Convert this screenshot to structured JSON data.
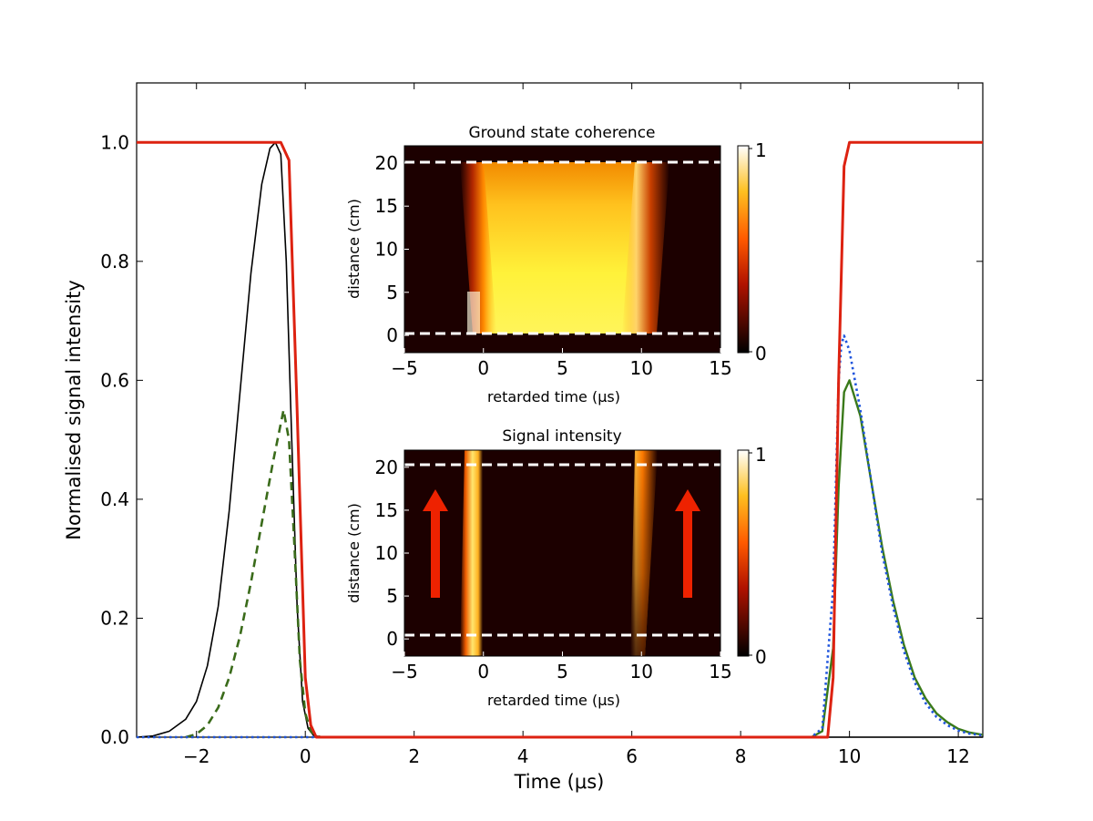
{
  "chart_data": [
    {
      "type": "line",
      "xlabel": "Time (μs)",
      "ylabel": "Normalised signal intensity",
      "xlim": [
        -3.1,
        12.45
      ],
      "ylim": [
        0,
        1.1
      ],
      "xticks": [
        -2,
        0,
        2,
        4,
        6,
        8,
        10,
        12
      ],
      "xtick_labels": [
        "−2",
        "0",
        "2",
        "4",
        "6",
        "8",
        "10",
        "12"
      ],
      "yticks": [
        0,
        0.2,
        0.4,
        0.6,
        0.8,
        1.0
      ],
      "ytick_labels": [
        "0.0",
        "0.2",
        "0.4",
        "0.6",
        "0.8",
        "1.0"
      ],
      "grid": false,
      "series": [
        {
          "color": "#dd2211",
          "style": "solid-thick",
          "x": [
            -3.1,
            -0.45,
            -0.3,
            -0.15,
            0.0,
            0.1,
            0.2,
            9.6,
            9.7,
            9.8,
            9.9,
            10.0,
            12.45
          ],
          "y": [
            1.0,
            1.0,
            0.97,
            0.55,
            0.1,
            0.02,
            0.0,
            0.0,
            0.1,
            0.6,
            0.96,
            1.0,
            1.0
          ]
        },
        {
          "color": "#000000",
          "style": "solid-thin",
          "x": [
            -3.1,
            -2.8,
            -2.5,
            -2.2,
            -2.0,
            -1.8,
            -1.6,
            -1.4,
            -1.2,
            -1.0,
            -0.8,
            -0.65,
            -0.55,
            -0.45,
            -0.35,
            -0.25,
            -0.15,
            -0.05,
            0.05,
            0.15,
            0.3,
            12.45
          ],
          "y": [
            0.0,
            0.002,
            0.01,
            0.03,
            0.06,
            0.12,
            0.22,
            0.38,
            0.58,
            0.78,
            0.93,
            0.99,
            1.0,
            0.98,
            0.8,
            0.5,
            0.22,
            0.06,
            0.015,
            0.003,
            0.0,
            0.0
          ]
        },
        {
          "color": "#3a6b1a",
          "style": "dashed",
          "x": [
            -2.2,
            -2.0,
            -1.8,
            -1.6,
            -1.4,
            -1.2,
            -1.0,
            -0.8,
            -0.6,
            -0.4,
            -0.3,
            -0.2,
            -0.1,
            0.0,
            0.1,
            0.2,
            0.3
          ],
          "y": [
            0.0,
            0.005,
            0.02,
            0.05,
            0.1,
            0.17,
            0.26,
            0.36,
            0.46,
            0.55,
            0.5,
            0.32,
            0.13,
            0.04,
            0.01,
            0.002,
            0.0
          ]
        },
        {
          "color": "#3a7a1a",
          "style": "solid-medium",
          "x": [
            9.3,
            9.5,
            9.7,
            9.8,
            9.9,
            10.0,
            10.2,
            10.4,
            10.6,
            10.8,
            11.0,
            11.2,
            11.4,
            11.6,
            11.8,
            12.0,
            12.2,
            12.45
          ],
          "y": [
            0.0,
            0.01,
            0.15,
            0.42,
            0.58,
            0.6,
            0.54,
            0.43,
            0.32,
            0.23,
            0.155,
            0.1,
            0.065,
            0.04,
            0.025,
            0.014,
            0.008,
            0.004
          ]
        },
        {
          "color": "#1f55dd",
          "style": "dotted",
          "x": [
            -3.1,
            9.3,
            9.5,
            9.7,
            9.8,
            9.85,
            9.9,
            10.0,
            10.2,
            10.4,
            10.6,
            10.8,
            11.0,
            11.2,
            11.4,
            11.6,
            11.8,
            12.0,
            12.2,
            12.45
          ],
          "y": [
            0.0,
            0.0,
            0.015,
            0.25,
            0.6,
            0.66,
            0.675,
            0.65,
            0.55,
            0.43,
            0.31,
            0.22,
            0.145,
            0.092,
            0.057,
            0.034,
            0.02,
            0.011,
            0.006,
            0.003
          ]
        }
      ]
    },
    {
      "type": "heatmap",
      "title": "Ground state coherence",
      "xlabel": "retarded time (μs)",
      "ylabel": "distance (cm)",
      "xlim": [
        -5,
        15
      ],
      "ylim": [
        -2,
        22
      ],
      "xticks": [
        -5,
        0,
        5,
        10,
        15
      ],
      "xtick_labels": [
        "−5",
        "0",
        "5",
        "10",
        "15"
      ],
      "yticks": [
        0,
        5,
        10,
        15,
        20
      ],
      "ytick_labels": [
        "0",
        "5",
        "10",
        "15",
        "20"
      ],
      "colorbar_ticks": [
        "0",
        "1"
      ],
      "cmap": "afmhot",
      "dashed_lines_y": [
        0.5,
        20.5
      ]
    },
    {
      "type": "heatmap",
      "title": "Signal intensity",
      "xlabel": "retarded time (μs)",
      "ylabel": "distance (cm)",
      "xlim": [
        -5,
        15
      ],
      "ylim": [
        -2,
        22
      ],
      "xticks": [
        -5,
        0,
        5,
        10,
        15
      ],
      "xtick_labels": [
        "−5",
        "0",
        "5",
        "10",
        "15"
      ],
      "yticks": [
        0,
        5,
        10,
        15,
        20
      ],
      "ytick_labels": [
        "0",
        "5",
        "10",
        "15",
        "20"
      ],
      "colorbar_ticks": [
        "0",
        "1"
      ],
      "cmap": "afmhot",
      "dashed_lines_y": [
        0.5,
        20.5
      ],
      "arrows": [
        {
          "x": -3.3,
          "from_y": 5,
          "to_y": 17,
          "color": "#ee2200"
        },
        {
          "x": 12.8,
          "from_y": 5,
          "to_y": 17,
          "color": "#ee2200"
        }
      ]
    }
  ]
}
